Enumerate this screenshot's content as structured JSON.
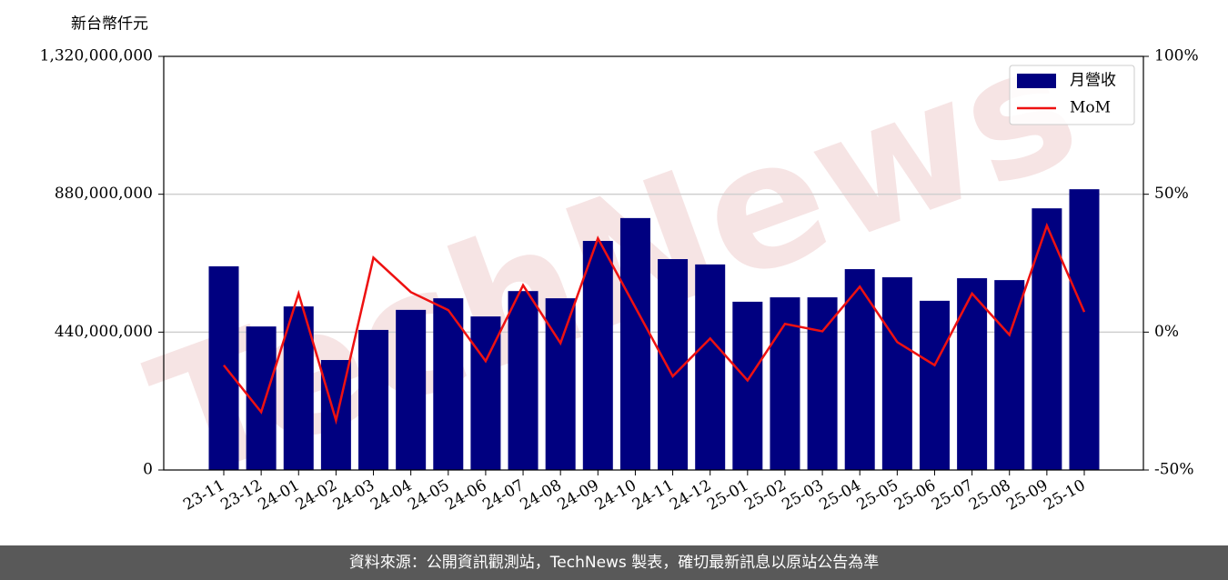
{
  "chart_data": {
    "type": "bar",
    "ylabel": "新台幣仟元",
    "watermark": "TechNews",
    "categories": [
      "23-11",
      "23-12",
      "24-01",
      "24-02",
      "24-03",
      "24-04",
      "24-05",
      "24-06",
      "24-07",
      "24-08",
      "24-09",
      "24-10",
      "24-11",
      "24-12",
      "25-01",
      "25-02",
      "25-03",
      "25-04",
      "25-05",
      "25-06",
      "25-07",
      "25-08",
      "25-09",
      "25-10"
    ],
    "series": [
      {
        "name": "月營收",
        "type": "bar",
        "color": "#000080",
        "axis": "y",
        "values": [
          650000000,
          458000000,
          522000000,
          351000000,
          447000000,
          511000000,
          548000000,
          490000000,
          571000000,
          548000000,
          731000000,
          804000000,
          673000000,
          656000000,
          537000000,
          551000000,
          551000000,
          641000000,
          615000000,
          540000000,
          612000000,
          606000000,
          835000000,
          896000000
        ]
      },
      {
        "name": "MoM",
        "type": "line",
        "color": "#ee1111",
        "axis": "y2",
        "values": [
          -12,
          -29,
          14,
          -32,
          27,
          14.5,
          8,
          -10.5,
          17,
          -4,
          34,
          9,
          -16,
          -2.3,
          -17.5,
          3,
          0.3,
          16.5,
          -3.6,
          -12,
          14,
          -1,
          38.6,
          7.3
        ]
      }
    ],
    "ylim": [
      0,
      1320000000
    ],
    "yticks": [
      {
        "value": 0,
        "label": "0"
      },
      {
        "value": 440000000,
        "label": "440,000,000"
      },
      {
        "value": 880000000,
        "label": "880,000,000"
      },
      {
        "value": 1320000000,
        "label": "1,320,000,000"
      }
    ],
    "y2lim": [
      -50,
      100
    ],
    "y2ticks": [
      {
        "value": -50,
        "label": "-50%"
      },
      {
        "value": 0,
        "label": "0%"
      },
      {
        "value": 50,
        "label": "50%"
      },
      {
        "value": 100,
        "label": "100%"
      }
    ],
    "grid": true,
    "legend": "upper right"
  },
  "footer": "資料來源：公開資訊觀測站，TechNews 製表，確切最新訊息以原站公告為準"
}
